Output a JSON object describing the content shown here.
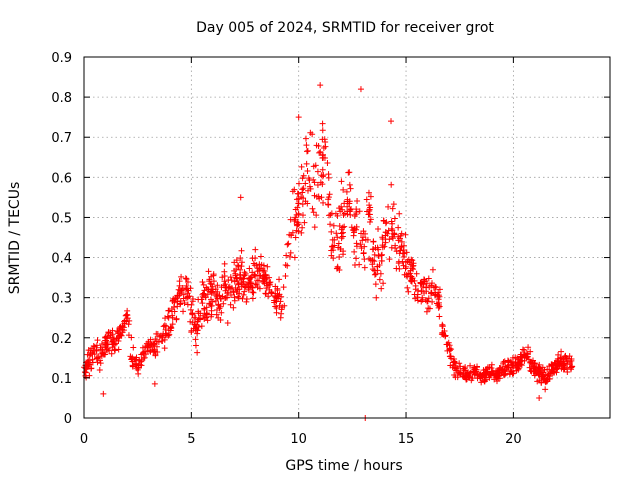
{
  "chart_data": {
    "type": "scatter",
    "title": "Day 005 of 2024, SRMTID for receiver grot",
    "xlabel": "GPS time / hours",
    "ylabel": "SRMTID / TECUs",
    "xlim": [
      0,
      24.5
    ],
    "ylim": [
      0,
      0.9
    ],
    "xticks": [
      0,
      5,
      10,
      15,
      20
    ],
    "yticks": [
      0,
      0.1,
      0.2,
      0.3,
      0.4,
      0.5,
      0.6,
      0.7,
      0.8,
      0.9
    ],
    "grid": true,
    "marker": "+",
    "color": "#ff0000",
    "series": [
      {
        "name": "SRMTID",
        "x": [
          0.0,
          0.25,
          0.5,
          0.75,
          1.0,
          1.25,
          1.5,
          1.75,
          2.0,
          2.25,
          2.5,
          2.75,
          3.0,
          3.25,
          3.5,
          3.75,
          4.0,
          4.25,
          4.5,
          4.75,
          5.0,
          5.25,
          5.5,
          5.75,
          6.0,
          6.25,
          6.5,
          6.75,
          7.0,
          7.25,
          7.5,
          7.75,
          8.0,
          8.25,
          8.5,
          8.75,
          9.0,
          9.25,
          9.5,
          9.75,
          10.0,
          10.25,
          10.5,
          10.75,
          11.0,
          11.25,
          11.5,
          11.75,
          12.0,
          12.25,
          12.5,
          12.75,
          13.0,
          13.25,
          13.5,
          13.75,
          14.0,
          14.25,
          14.5,
          14.75,
          15.0,
          15.25,
          15.5,
          15.75,
          16.0,
          16.25,
          16.5,
          16.75,
          17.0,
          17.25,
          17.5,
          17.75,
          18.0,
          18.25,
          18.5,
          18.75,
          19.0,
          19.25,
          19.5,
          19.75,
          20.0,
          20.25,
          20.5,
          20.75,
          21.0,
          21.25,
          21.5,
          21.75,
          22.0,
          22.25,
          22.5,
          22.75
        ],
        "y": [
          0.12,
          0.14,
          0.16,
          0.15,
          0.18,
          0.2,
          0.19,
          0.22,
          0.25,
          0.15,
          0.13,
          0.16,
          0.18,
          0.17,
          0.19,
          0.2,
          0.24,
          0.28,
          0.3,
          0.32,
          0.26,
          0.22,
          0.28,
          0.3,
          0.33,
          0.29,
          0.31,
          0.3,
          0.34,
          0.36,
          0.34,
          0.33,
          0.36,
          0.37,
          0.34,
          0.33,
          0.3,
          0.27,
          0.42,
          0.47,
          0.52,
          0.58,
          0.6,
          0.57,
          0.62,
          0.68,
          0.45,
          0.44,
          0.47,
          0.55,
          0.5,
          0.45,
          0.42,
          0.5,
          0.4,
          0.38,
          0.45,
          0.5,
          0.45,
          0.42,
          0.38,
          0.36,
          0.32,
          0.33,
          0.3,
          0.33,
          0.3,
          0.22,
          0.17,
          0.13,
          0.12,
          0.11,
          0.11,
          0.12,
          0.1,
          0.11,
          0.12,
          0.11,
          0.12,
          0.13,
          0.13,
          0.14,
          0.16,
          0.15,
          0.12,
          0.11,
          0.1,
          0.12,
          0.13,
          0.14,
          0.13,
          0.14
        ],
        "spread": [
          0.04,
          0.05,
          0.06,
          0.05,
          0.05,
          0.06,
          0.05,
          0.06,
          0.07,
          0.05,
          0.04,
          0.05,
          0.05,
          0.05,
          0.05,
          0.06,
          0.07,
          0.08,
          0.08,
          0.09,
          0.09,
          0.08,
          0.09,
          0.09,
          0.1,
          0.09,
          0.09,
          0.09,
          0.1,
          0.1,
          0.09,
          0.09,
          0.08,
          0.08,
          0.08,
          0.08,
          0.08,
          0.07,
          0.12,
          0.14,
          0.16,
          0.18,
          0.18,
          0.18,
          0.18,
          0.16,
          0.17,
          0.17,
          0.17,
          0.17,
          0.16,
          0.16,
          0.16,
          0.16,
          0.16,
          0.14,
          0.15,
          0.16,
          0.15,
          0.13,
          0.1,
          0.1,
          0.09,
          0.09,
          0.08,
          0.07,
          0.06,
          0.05,
          0.04,
          0.04,
          0.03,
          0.03,
          0.03,
          0.03,
          0.03,
          0.03,
          0.03,
          0.03,
          0.04,
          0.04,
          0.04,
          0.04,
          0.05,
          0.04,
          0.04,
          0.04,
          0.04,
          0.04,
          0.04,
          0.04,
          0.04,
          0.04
        ],
        "outliers": [
          {
            "x": 12.9,
            "y": 0.82
          },
          {
            "x": 11.0,
            "y": 0.83
          },
          {
            "x": 14.3,
            "y": 0.74
          },
          {
            "x": 10.0,
            "y": 0.75
          },
          {
            "x": 7.3,
            "y": 0.55
          },
          {
            "x": 13.1,
            "y": 0.0
          },
          {
            "x": 0.9,
            "y": 0.06
          },
          {
            "x": 3.3,
            "y": 0.085
          },
          {
            "x": 21.2,
            "y": 0.05
          }
        ]
      }
    ]
  }
}
